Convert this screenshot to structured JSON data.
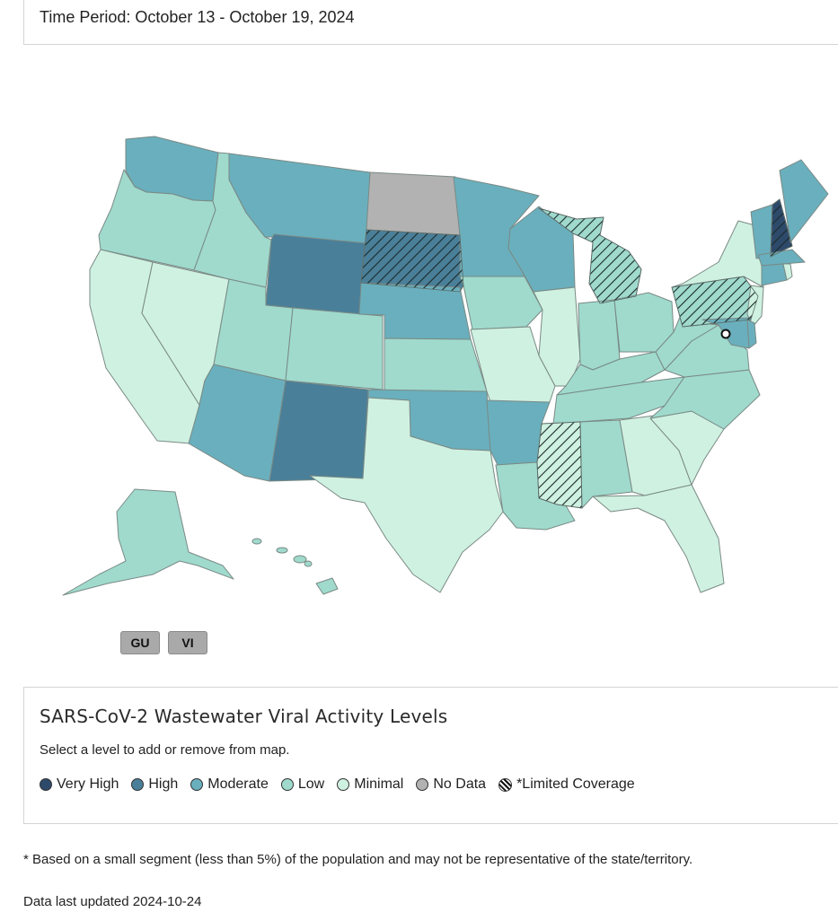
{
  "header": {
    "time_period": "Time Period: October 13 - October 19, 2024"
  },
  "colors": {
    "very_high": "#2e4a6b",
    "high": "#4a7f99",
    "moderate": "#6aafbd",
    "low": "#9fdacd",
    "minimal": "#cff1e1",
    "no_data": "#b2b2b2",
    "border": "#7a8a85"
  },
  "states": {
    "WA": "moderate",
    "OR": "low",
    "CA": "minimal",
    "NV": "minimal",
    "ID": "low",
    "MT": "moderate",
    "WY": "high",
    "UT": "low",
    "AZ": "moderate",
    "CO": "low",
    "NM": "high",
    "ND": "no_data",
    "SD": "high",
    "NE": "moderate",
    "KS": "low",
    "OK": "moderate",
    "TX": "minimal",
    "MN": "moderate",
    "IA": "low",
    "MO": "minimal",
    "AR": "moderate",
    "LA": "low",
    "WI": "moderate",
    "IL": "minimal",
    "MI": "low",
    "IN": "low",
    "OH": "low",
    "KY": "low",
    "TN": "low",
    "MS": "minimal",
    "AL": "low",
    "GA": "minimal",
    "FL": "minimal",
    "SC": "minimal",
    "NC": "low",
    "VA": "low",
    "WV": "low",
    "PA": "low",
    "NY": "minimal",
    "NJ": "minimal",
    "MD": "moderate",
    "DE": "moderate",
    "DC": "minimal",
    "VT": "moderate",
    "NH": "very_high",
    "ME": "moderate",
    "MA": "moderate",
    "CT": "moderate",
    "RI": "minimal",
    "AK": "low",
    "HI": "low"
  },
  "limited_coverage": [
    "SD",
    "MI",
    "PA",
    "MS",
    "NH"
  ],
  "territories": [
    {
      "label": "GU",
      "level": "no_data"
    },
    {
      "label": "VI",
      "level": "no_data"
    }
  ],
  "legend": {
    "title": "SARS-CoV-2 Wastewater Viral Activity Levels",
    "subtitle": "Select a level to add or remove from map.",
    "items": [
      {
        "label": "Very High",
        "level": "very_high"
      },
      {
        "label": "High",
        "level": "high"
      },
      {
        "label": "Moderate",
        "level": "moderate"
      },
      {
        "label": "Low",
        "level": "low"
      },
      {
        "label": "Minimal",
        "level": "minimal"
      },
      {
        "label": "No Data",
        "level": "no_data"
      },
      {
        "label": "*Limited Coverage",
        "level": "limited"
      }
    ]
  },
  "footnote": "* Based on a small segment (less than 5%) of the population and may not be representative of the state/territory.",
  "last_updated": "Data last updated 2024-10-24"
}
